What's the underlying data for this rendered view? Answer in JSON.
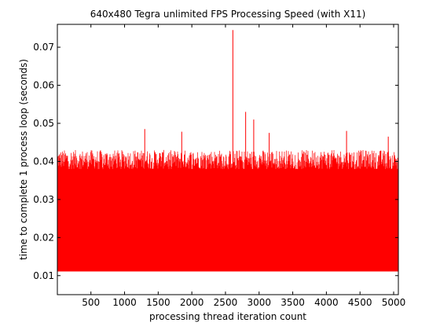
{
  "chart_data": {
    "type": "line",
    "title": "640x480 Tegra unlimited FPS Processing Speed (with X11)",
    "xlabel": "processing thread iteration count",
    "ylabel": "time to complete 1 process loop (seconds)",
    "xlim": [
      1,
      5070
    ],
    "ylim": [
      0.005,
      0.076
    ],
    "xticks": [
      500,
      1000,
      1500,
      2000,
      2500,
      3000,
      3500,
      4000,
      4500,
      5000
    ],
    "yticks": [
      0.01,
      0.02,
      0.03,
      0.04,
      0.05,
      0.06,
      0.07
    ],
    "ytick_labels": [
      "0.01",
      "0.02",
      "0.03",
      "0.04",
      "0.05",
      "0.06",
      "0.07"
    ],
    "grid": false,
    "legend": "none",
    "series": [
      {
        "color": "#ff0000",
        "baseline": 0.0111,
        "typical_peak_range": [
          0.038,
          0.043
        ],
        "spikes": [
          {
            "x": 1300,
            "y": 0.0485
          },
          {
            "x": 1850,
            "y": 0.0478
          },
          {
            "x": 2610,
            "y": 0.0745
          },
          {
            "x": 2800,
            "y": 0.053
          },
          {
            "x": 2920,
            "y": 0.051
          },
          {
            "x": 3150,
            "y": 0.0475
          },
          {
            "x": 4300,
            "y": 0.048
          },
          {
            "x": 4920,
            "y": 0.0465
          }
        ]
      }
    ]
  }
}
